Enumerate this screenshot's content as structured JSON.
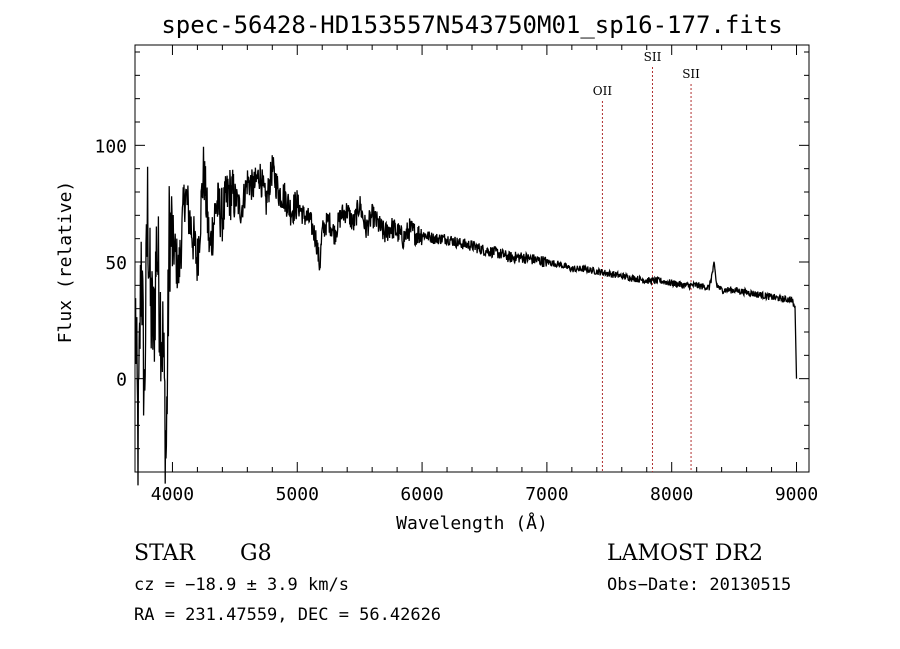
{
  "chart_data": {
    "type": "line",
    "title": "spec-56428-HD153557N543750M01_sp16-177.fits",
    "xlabel": "Wavelength (Å)",
    "ylabel": "Flux (relative)",
    "xlim": [
      3700,
      9100
    ],
    "ylim": [
      -40,
      143
    ],
    "xticks": [
      4000,
      5000,
      6000,
      7000,
      8000,
      9000
    ],
    "yticks": [
      0,
      50,
      100
    ],
    "grid": false,
    "line_color": "#000000",
    "marker_color": "#b03030",
    "lines": [
      {
        "label": "OII",
        "x": 7445
      },
      {
        "label": "SII",
        "x": 7846
      },
      {
        "label": "SII",
        "x": 8155
      }
    ],
    "series": [
      {
        "x": [
          3700,
          3725,
          3750,
          3775,
          3800,
          3825,
          3850,
          3875,
          3900,
          3925,
          3950,
          3975,
          4000,
          4050,
          4100,
          4150,
          4200,
          4250,
          4300,
          4350,
          4400,
          4450,
          4500,
          4550,
          4600,
          4650,
          4700,
          4750,
          4800,
          4850,
          4900,
          4950,
          5000,
          5050,
          5100,
          5150,
          5180,
          5200,
          5250,
          5300,
          5350,
          5400,
          5450,
          5500,
          5550,
          5600,
          5650,
          5700,
          5750,
          5800,
          5850,
          5900,
          5950,
          6000,
          6100,
          6200,
          6300,
          6400,
          6500,
          6600,
          6700,
          6800,
          6900,
          7000,
          7100,
          7200,
          7300,
          7400,
          7500,
          7600,
          7700,
          7800,
          7900,
          8000,
          8100,
          8200,
          8300,
          8340,
          8360,
          8400,
          8500,
          8600,
          8700,
          8800,
          8900,
          8960,
          8990,
          9000
        ],
        "y": [
          40,
          -30,
          55,
          -10,
          75,
          30,
          20,
          60,
          30,
          15,
          -35,
          65,
          60,
          45,
          80,
          65,
          50,
          90,
          55,
          75,
          70,
          80,
          78,
          72,
          85,
          82,
          88,
          75,
          90,
          80,
          78,
          72,
          75,
          70,
          68,
          60,
          48,
          63,
          68,
          62,
          70,
          72,
          66,
          75,
          64,
          70,
          66,
          62,
          65,
          63,
          60,
          64,
          62,
          62,
          60,
          60,
          58,
          57,
          55,
          54,
          52,
          52,
          51,
          50,
          49,
          47,
          47,
          46,
          45,
          44,
          43,
          42,
          42,
          41,
          40,
          40,
          39,
          49,
          40,
          38,
          38,
          37,
          36,
          35,
          34,
          34,
          30,
          0
        ]
      }
    ]
  },
  "footer": {
    "object_class": "STAR",
    "subclass": "G8",
    "survey": "LAMOST DR2",
    "cz": "cz = −18.9 ± 3.9 km/s",
    "obs_date": "Obs−Date: 20130515",
    "radec": "RA = 231.47559, DEC =  56.42626"
  }
}
